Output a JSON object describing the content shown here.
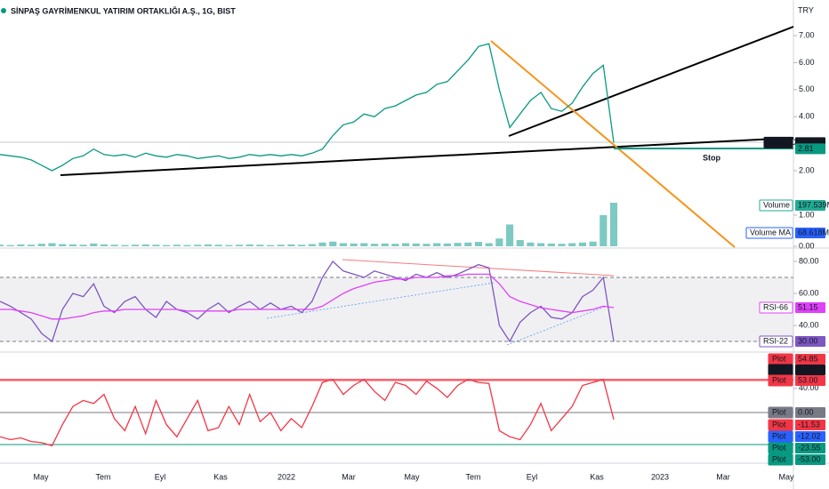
{
  "header": {
    "title": "SİNPAŞ GAYRİMENKUL YATIRIM ORTAKLIĞI A.Ş., 1G, BIST",
    "currency": "TRY"
  },
  "annotation": "Stop",
  "time_axis": [
    "May",
    "Tem",
    "Eyl",
    "Kas",
    "2022",
    "Mar",
    "May",
    "Tem",
    "Eyl",
    "Kas",
    "2023",
    "Mar",
    "May"
  ],
  "chart_data": [
    {
      "type": "line",
      "color": "#089981",
      "values": [
        2.6,
        2.55,
        2.5,
        2.4,
        2.2,
        2.0,
        2.2,
        2.45,
        2.55,
        2.8,
        2.6,
        2.55,
        2.6,
        2.5,
        2.65,
        2.55,
        2.5,
        2.6,
        2.55,
        2.45,
        2.5,
        2.55,
        2.45,
        2.5,
        2.6,
        2.55,
        2.6,
        2.55,
        2.6,
        2.55,
        2.65,
        2.8,
        3.3,
        3.7,
        3.8,
        4.1,
        4.0,
        4.3,
        4.4,
        4.6,
        4.8,
        4.9,
        5.2,
        5.3,
        5.7,
        6.1,
        6.6,
        6.7,
        5.0,
        3.6,
        4.1,
        4.6,
        4.9,
        4.3,
        4.2,
        4.5,
        5.1,
        5.6,
        5.9,
        3.04
      ],
      "ylim": [
        -0.83,
        8.32
      ],
      "yticks": [
        {
          "value": 7,
          "label": "7.00"
        },
        {
          "value": 6,
          "label": "6.00"
        },
        {
          "value": 5,
          "label": "5.00"
        },
        {
          "value": 4,
          "label": "4.00"
        },
        {
          "value": 3,
          "label": "3.00"
        },
        {
          "value": 2,
          "label": "2.00"
        }
      ],
      "badges": [
        {
          "name": "SNGYO",
          "value": 3.04,
          "color": "#131722"
        },
        {
          "value": 2.81,
          "color": "#089981"
        }
      ]
    },
    {
      "type": "bar",
      "color": "#26a69a",
      "values": [
        0.05,
        0.04,
        0.06,
        0.05,
        0.08,
        0.1,
        0.07,
        0.06,
        0.05,
        0.09,
        0.06,
        0.05,
        0.04,
        0.05,
        0.06,
        0.05,
        0.04,
        0.05,
        0.04,
        0.05,
        0.06,
        0.05,
        0.04,
        0.05,
        0.06,
        0.05,
        0.04,
        0.05,
        0.06,
        0.05,
        0.07,
        0.12,
        0.15,
        0.1,
        0.09,
        0.1,
        0.08,
        0.09,
        0.08,
        0.1,
        0.09,
        0.08,
        0.1,
        0.09,
        0.11,
        0.12,
        0.14,
        0.1,
        0.25,
        0.7,
        0.2,
        0.12,
        0.1,
        0.09,
        0.08,
        0.1,
        0.12,
        0.15,
        1.0,
        1.4
      ],
      "ylim": [
        0,
        2
      ],
      "yticks": [
        {
          "value": 1,
          "label": "1.00"
        },
        {
          "value": 0,
          "label": "0.00"
        }
      ],
      "badges": [
        {
          "name": "Volume",
          "value": 197539000,
          "label": "197.539M",
          "color": "#22ab94"
        },
        {
          "name": "Volume MA",
          "value": 68618000,
          "label": "68.618M",
          "color": "#2962ff"
        }
      ]
    },
    {
      "type": "line",
      "series": [
        {
          "name": "RSI-22",
          "color": "#7e57c2",
          "values": [
            55,
            52,
            48,
            44,
            35,
            30,
            50,
            60,
            58,
            66,
            52,
            48,
            55,
            58,
            50,
            45,
            55,
            50,
            48,
            44,
            50,
            54,
            48,
            52,
            55,
            50,
            54,
            50,
            52,
            48,
            55,
            70,
            80,
            74,
            72,
            70,
            74,
            72,
            70,
            68,
            72,
            70,
            73,
            70,
            72,
            75,
            78,
            76,
            40,
            30,
            42,
            48,
            52,
            45,
            44,
            48,
            58,
            62,
            70,
            30
          ]
        },
        {
          "name": "RSI-66",
          "color": "#e040fb",
          "values": [
            50,
            50,
            49,
            48,
            46,
            44,
            44,
            45,
            46,
            48,
            49,
            49,
            50,
            50,
            50,
            50,
            50,
            50,
            49,
            49,
            49,
            49,
            49,
            50,
            50,
            50,
            50,
            50,
            50,
            50,
            50,
            52,
            56,
            60,
            63,
            65,
            67,
            68,
            69,
            69,
            70,
            70,
            70,
            71,
            71,
            72,
            72,
            72,
            66,
            58,
            55,
            53,
            51,
            50,
            49,
            48,
            49,
            50,
            52,
            51.15
          ]
        }
      ],
      "ylim": [
        23.9,
        87.8
      ],
      "yticks": [
        {
          "value": 80,
          "label": "80.00"
        },
        {
          "value": 60,
          "label": "60.00"
        },
        {
          "value": 40,
          "label": "40.00"
        }
      ],
      "levels": [
        70,
        30
      ],
      "badges": [
        {
          "name": "RSI-66",
          "value": 51.15,
          "label": "51.15",
          "color": "#e040fb"
        },
        {
          "name": "RSI-22",
          "value": 30,
          "label": "30.00",
          "color": "#7e57c2"
        }
      ]
    },
    {
      "type": "line",
      "series": [
        {
          "name": "Plot",
          "color": "#f23645",
          "values": [
            -40,
            -45,
            -42,
            -48,
            -50,
            -55,
            -20,
            10,
            20,
            15,
            30,
            -10,
            -30,
            10,
            -35,
            20,
            -20,
            -40,
            -10,
            20,
            -30,
            -25,
            10,
            -20,
            30,
            -15,
            0,
            -30,
            -10,
            -25,
            10,
            50,
            55,
            30,
            45,
            55,
            35,
            20,
            50,
            45,
            30,
            52,
            40,
            25,
            45,
            55,
            50,
            48,
            -30,
            -40,
            -45,
            -20,
            15,
            -30,
            -10,
            10,
            45,
            50,
            55,
            -11.53
          ]
        }
      ],
      "ylim": [
        -82.5,
        98.7
      ],
      "yticks": [
        {
          "value": 40,
          "label": "40.00"
        }
      ],
      "levels": [
        54.85,
        53,
        0,
        -53
      ],
      "badges": [
        {
          "name": "Plot",
          "value": 54.85,
          "label": "54.85",
          "color": "#f23645"
        },
        {
          "name": "Plot",
          "value": 54.85,
          "label": "54.85",
          "color": "#131722"
        },
        {
          "name": "Plot",
          "value": 53,
          "label": "53.00",
          "color": "#f23645"
        },
        {
          "name": "Plot",
          "value": 0,
          "label": "0.00",
          "color": "#787b86"
        },
        {
          "name": "Plot",
          "value": -11.53,
          "label": "-11.53",
          "color": "#f23645"
        },
        {
          "name": "Plot",
          "value": -12.02,
          "label": "-12.02",
          "color": "#2962ff"
        },
        {
          "name": "Plot",
          "value": -23.55,
          "label": "-23.55",
          "color": "#089981"
        },
        {
          "name": "Plot",
          "value": -53,
          "label": "-53.00",
          "color": "#089981"
        }
      ]
    }
  ]
}
